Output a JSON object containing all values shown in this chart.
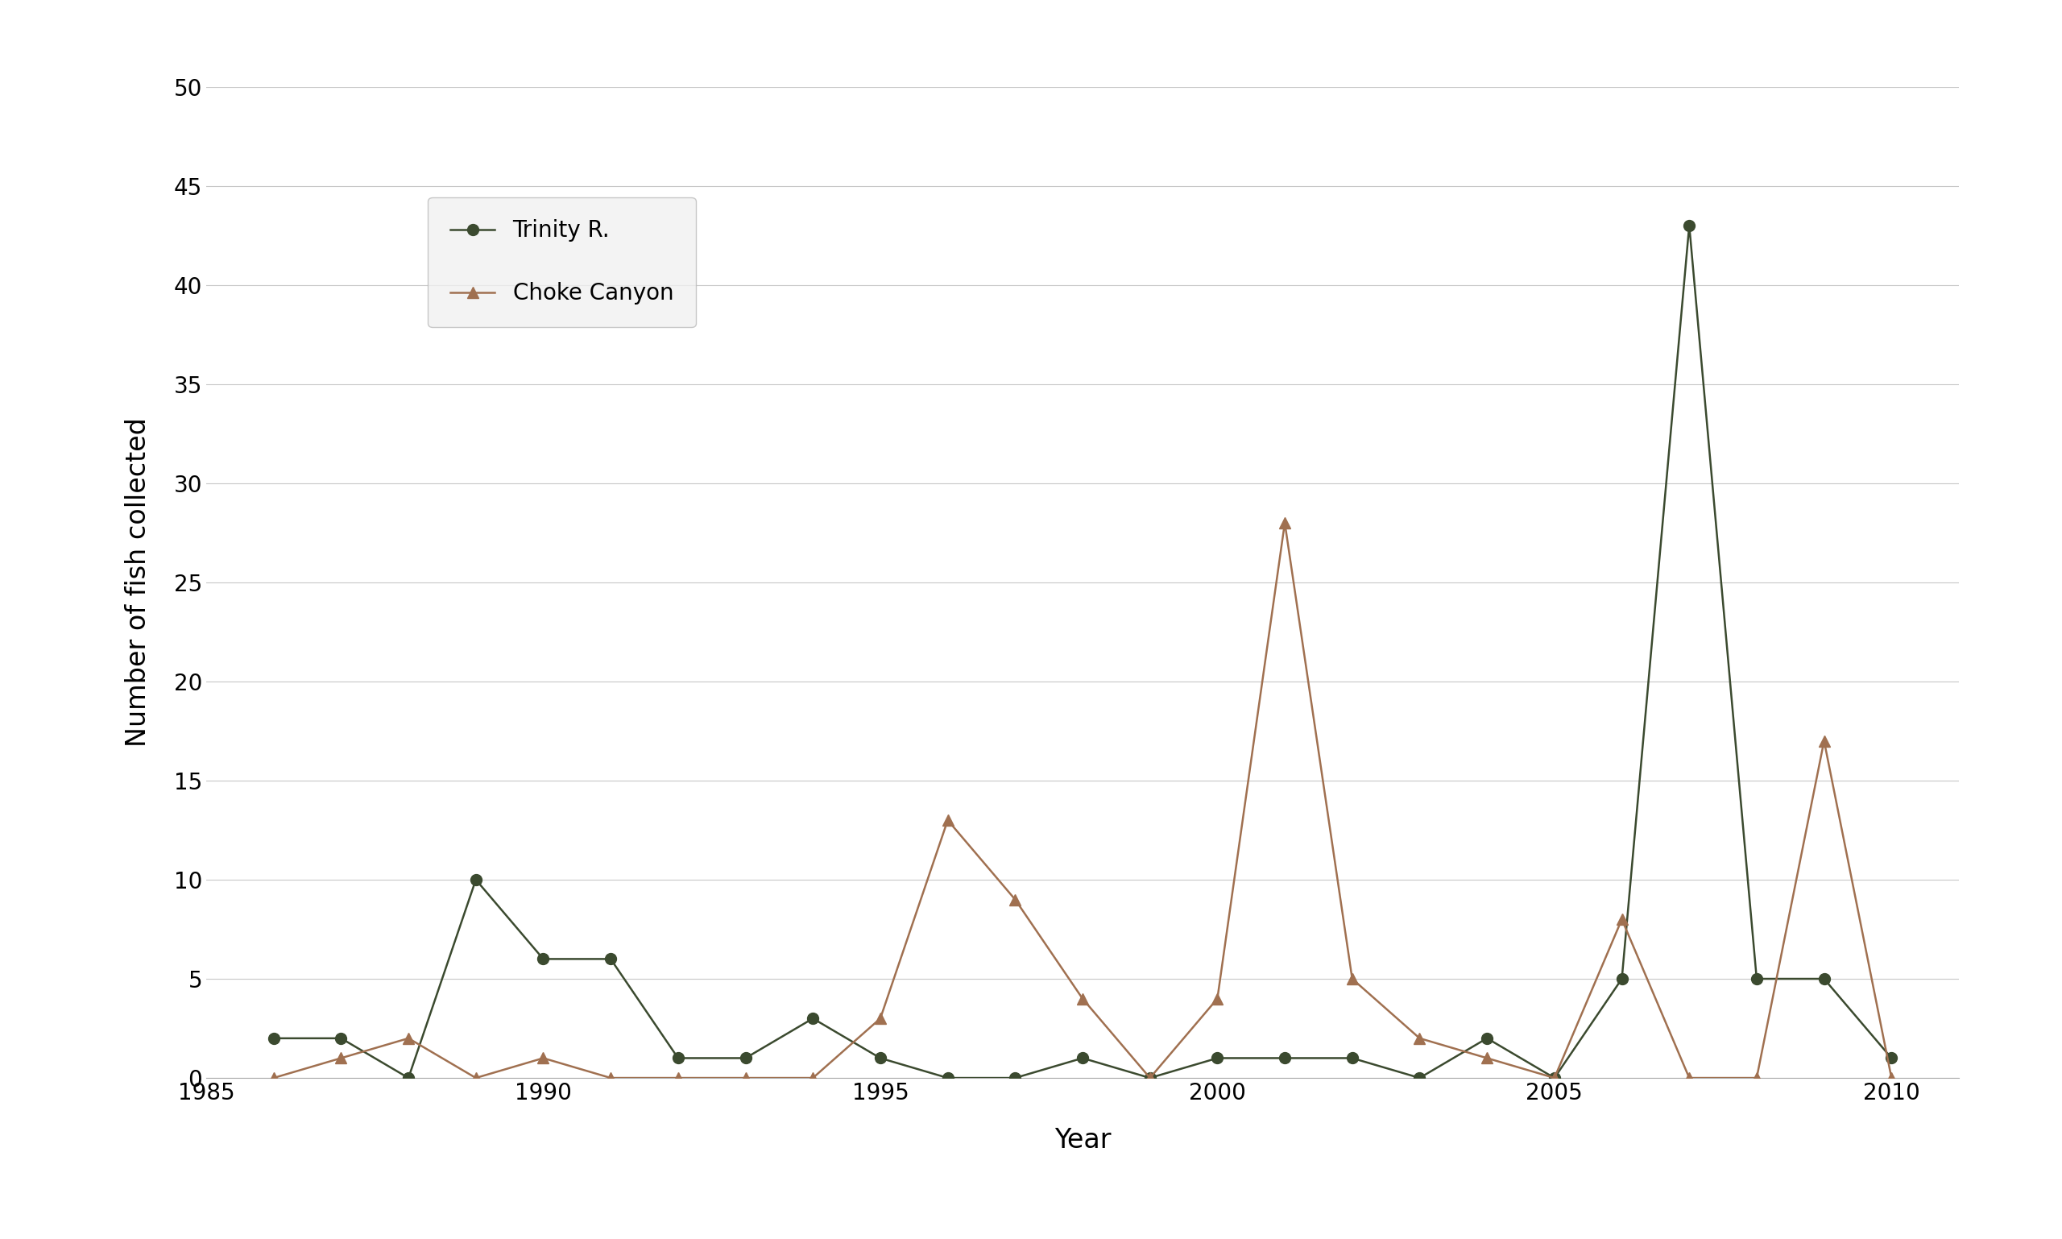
{
  "trinity_years": [
    1986,
    1987,
    1988,
    1989,
    1990,
    1991,
    1992,
    1993,
    1994,
    1995,
    1996,
    1997,
    1998,
    1999,
    2000,
    2001,
    2002,
    2003,
    2004,
    2005,
    2006,
    2007,
    2008,
    2009,
    2010
  ],
  "trinity_values": [
    2,
    2,
    0,
    10,
    6,
    6,
    1,
    1,
    3,
    1,
    0,
    0,
    1,
    0,
    1,
    1,
    1,
    0,
    2,
    0,
    5,
    43,
    5,
    5,
    1
  ],
  "choke_years": [
    1986,
    1987,
    1988,
    1989,
    1990,
    1991,
    1992,
    1993,
    1994,
    1995,
    1996,
    1997,
    1998,
    1999,
    2000,
    2001,
    2002,
    2003,
    2004,
    2005,
    2006,
    2007,
    2008,
    2009,
    2010
  ],
  "choke_values": [
    0,
    1,
    2,
    0,
    1,
    0,
    0,
    0,
    0,
    3,
    13,
    9,
    4,
    0,
    4,
    28,
    5,
    2,
    1,
    0,
    8,
    0,
    0,
    17,
    0
  ],
  "trinity_color": "#3b4a2f",
  "choke_color": "#a07050",
  "trinity_label": "Trinity R.",
  "choke_label": "Choke Canyon",
  "xlabel": "Year",
  "ylabel": "Number of fish collected",
  "xlim": [
    1985,
    2011
  ],
  "ylim": [
    0,
    50
  ],
  "yticks": [
    0,
    5,
    10,
    15,
    20,
    25,
    30,
    35,
    40,
    45,
    50
  ],
  "xticks": [
    1985,
    1990,
    1995,
    2000,
    2005,
    2010
  ],
  "background_color": "#ffffff",
  "grid_color": "#c8c8c8",
  "tick_fontsize": 20,
  "label_fontsize": 24,
  "marker_size_circle": 10,
  "marker_size_triangle": 10,
  "line_width": 1.8
}
